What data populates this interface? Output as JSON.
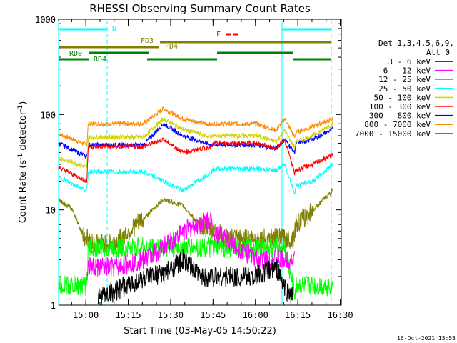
{
  "chart_data": {
    "type": "line",
    "title": "RHESSI Observing Summary Count Rates",
    "xlabel": "Start Time (03-May-05 14:50:22)",
    "ylabel_main": "Count Rate (s",
    "ylabel_sup1": "-1",
    "ylabel_mid": " detector",
    "ylabel_sup2": "-1",
    "ylabel_end": ")",
    "yscale": "log",
    "ylim": [
      1,
      1000
    ],
    "xlim_minutes": [
      0,
      100
    ],
    "x_unit": "minutes after 14:50:22",
    "x_ticks": [
      {
        "label": "15:00",
        "value": 9.63
      },
      {
        "label": "15:15",
        "value": 24.63
      },
      {
        "label": "15:30",
        "value": 39.63
      },
      {
        "label": "15:45",
        "value": 54.63
      },
      {
        "label": "16:00",
        "value": 69.63
      },
      {
        "label": "16:15",
        "value": 84.63
      },
      {
        "label": "16:30",
        "value": 99.63
      }
    ],
    "y_ticks": [
      {
        "label": "1",
        "value": 1
      },
      {
        "label": "10",
        "value": 10
      },
      {
        "label": "100",
        "value": 100
      },
      {
        "label": "1000",
        "value": 1000
      }
    ],
    "legend": {
      "header1": "Det 1,3,4,5,6,9,",
      "header2": "Att 0",
      "placement": "right",
      "entries": [
        {
          "label": "3 - 6 keV",
          "color": "#000000"
        },
        {
          "label": "6 - 12 keV",
          "color": "#ff00ff"
        },
        {
          "label": "12 - 25 keV",
          "color": "#00ff00"
        },
        {
          "label": "25 - 50 keV",
          "color": "#00ffff"
        },
        {
          "label": "50 - 100 keV",
          "color": "#d4d400"
        },
        {
          "label": "100 - 300 keV",
          "color": "#ff0000"
        },
        {
          "label": "300 - 800 keV",
          "color": "#0000ff"
        },
        {
          "label": "800 - 7000 keV",
          "color": "#ff8c00"
        },
        {
          "label": "7000 - 15000 keV",
          "color": "#808000"
        }
      ]
    },
    "series": [
      {
        "color": "#ff8c00",
        "x": [
          0,
          10,
          10.5,
          30,
          37,
          44,
          54,
          55,
          70,
          77,
          80,
          83.5,
          84,
          90,
          97
        ],
        "y": [
          63,
          48,
          80,
          80,
          115,
          90,
          78,
          80,
          80,
          68,
          90,
          58,
          65,
          75,
          90
        ]
      },
      {
        "color": "#0000ff",
        "x": [
          0,
          10,
          10.5,
          30,
          37,
          44,
          54,
          55,
          70,
          77,
          80,
          83.5,
          84,
          90,
          97
        ],
        "y": [
          50,
          36,
          48,
          48,
          80,
          60,
          48,
          48,
          48,
          44,
          55,
          40,
          50,
          55,
          70
        ]
      },
      {
        "color": "#d4d400",
        "x": [
          0,
          10,
          10.5,
          30,
          37,
          44,
          54,
          55,
          70,
          77,
          80,
          83.5,
          84,
          90,
          97
        ],
        "y": [
          35,
          28,
          58,
          58,
          90,
          70,
          58,
          60,
          60,
          52,
          68,
          45,
          52,
          60,
          80
        ]
      },
      {
        "color": "#ff0000",
        "x": [
          0,
          10,
          10.5,
          30,
          37,
          44,
          54,
          55,
          70,
          77,
          80,
          83.5,
          84,
          90,
          97
        ],
        "y": [
          28,
          20,
          46,
          46,
          55,
          40,
          46,
          50,
          50,
          44,
          55,
          24,
          26,
          30,
          38
        ]
      },
      {
        "color": "#00ffff",
        "x": [
          0,
          10,
          10.5,
          30,
          37,
          44,
          54,
          55,
          70,
          77,
          80,
          83.5,
          84,
          90,
          97
        ],
        "y": [
          22,
          16,
          25,
          25,
          20,
          16,
          25,
          27,
          27,
          26,
          30,
          15,
          18,
          20,
          30
        ]
      },
      {
        "color": "#808000",
        "x": [
          0,
          5,
          8,
          10,
          12,
          20,
          30,
          37,
          44,
          50,
          60,
          70,
          78,
          83,
          84,
          90,
          97
        ],
        "y": [
          13,
          10,
          6,
          5,
          4.5,
          4.5,
          8,
          13,
          11,
          7,
          5,
          5,
          5,
          5,
          7,
          10,
          16
        ]
      },
      {
        "color": "#00ff00",
        "x": [
          0,
          10,
          10.5,
          30,
          37,
          44,
          54,
          55,
          70,
          77,
          80,
          83.5,
          84,
          90,
          97
        ],
        "y": [
          1.6,
          1.6,
          4,
          4,
          4,
          4,
          4,
          4,
          4,
          4,
          4,
          1.3,
          1.6,
          1.6,
          1.6
        ]
      },
      {
        "color": "#ff00ff",
        "x": [
          10,
          20,
          30,
          37,
          44,
          54,
          55,
          70,
          77,
          80,
          83.5
        ],
        "y": [
          2.5,
          2.5,
          3,
          4,
          6,
          8,
          6,
          3,
          3,
          3,
          3
        ]
      },
      {
        "color": "#000000",
        "x": [
          14,
          20,
          28,
          38,
          44,
          50,
          60,
          70,
          77,
          80,
          83
        ],
        "y": [
          1.2,
          1.4,
          1.8,
          2.2,
          3,
          2,
          2,
          2,
          2.5,
          1.5,
          1.2
        ]
      }
    ],
    "annotations": [
      {
        "label": "N",
        "color": "#00ffff"
      },
      {
        "label": "F",
        "color": "#ff0000"
      },
      {
        "label": "FD3",
        "color": "#808000"
      },
      {
        "label": "FD4",
        "color": "#808000"
      },
      {
        "label": "RD0",
        "color": "#008000"
      },
      {
        "label": "RD4",
        "color": "#008000"
      }
    ],
    "timestamp": "16-Oct-2021 13:53"
  }
}
